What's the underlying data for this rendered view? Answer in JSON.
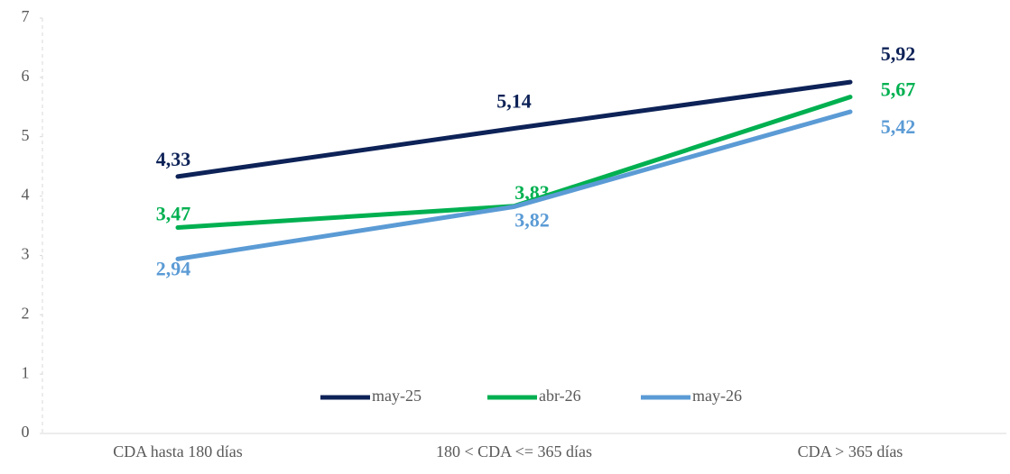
{
  "chart_data": {
    "type": "line",
    "categories": [
      "CDA hasta 180 días",
      "180 < CDA <= 365 días",
      "CDA > 365 días"
    ],
    "series": [
      {
        "name": "may-25",
        "color": "#0d2257",
        "values": [
          4.33,
          5.14,
          5.92
        ],
        "value_labels": [
          "4,33",
          "5,14",
          "5,92"
        ]
      },
      {
        "name": "abr-26",
        "color": "#00b050",
        "values": [
          3.47,
          3.83,
          5.67
        ],
        "value_labels": [
          "3,47",
          "3,83",
          "5,67"
        ]
      },
      {
        "name": "may-26",
        "color": "#5b9bd5",
        "values": [
          2.94,
          3.82,
          5.42
        ],
        "value_labels": [
          "2,94",
          "3,82",
          "5,42"
        ]
      }
    ],
    "ylim": [
      0,
      7
    ],
    "yticks": [
      0,
      1,
      2,
      3,
      4,
      5,
      6,
      7
    ],
    "legend": "bottom"
  }
}
